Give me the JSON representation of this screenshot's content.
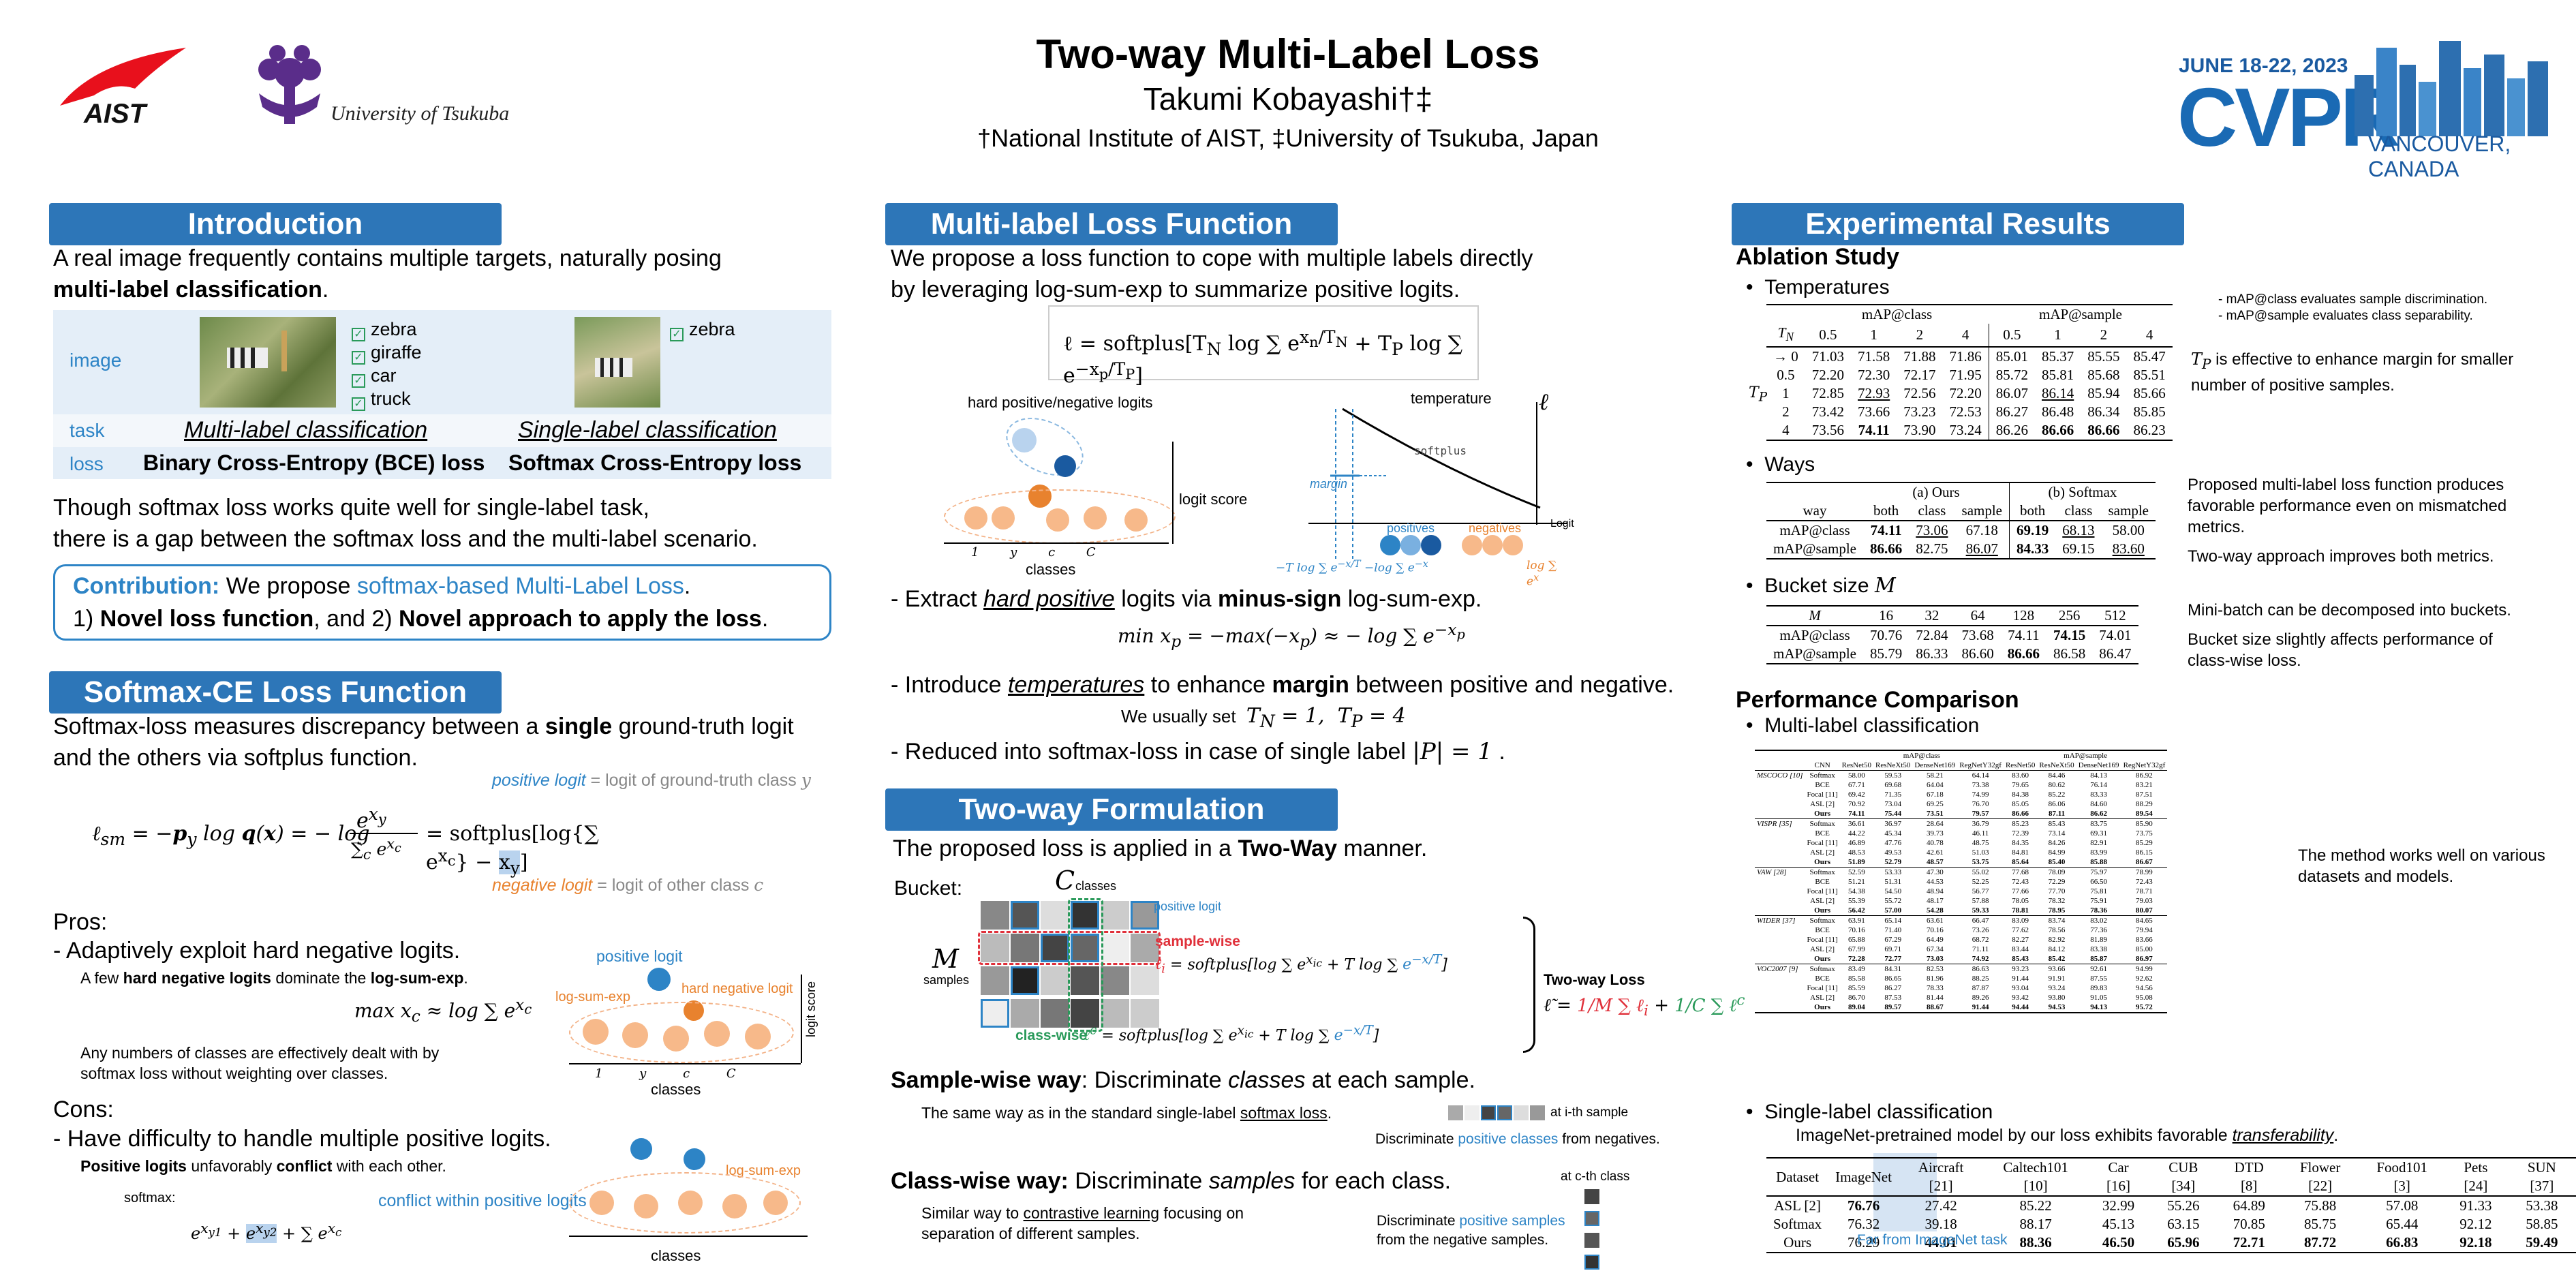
{
  "header": {
    "title": "Two-way Multi-Label Loss",
    "author": "Takumi Kobayashi†‡",
    "affil": "†National Institute of AIST, ‡University of Tsukuba, Japan",
    "aist": "AIST",
    "tsukuba": "University of Tsukuba",
    "cvpr_date": "JUNE 18-22, 2023",
    "cvpr": "CVPR",
    "cvpr_loc": "VANCOUVER, CANADA"
  },
  "intro": {
    "title": "Introduction",
    "p1": "A real image frequently contains multiple targets, naturally posing",
    "p1b": "multi-label classification",
    "row_image": "image",
    "row_task": "task",
    "row_loss": "loss",
    "labels_multi": [
      "zebra",
      "giraffe",
      "car",
      "truck"
    ],
    "labels_single": [
      "zebra"
    ],
    "task_multi": "Multi-label classification",
    "task_single": "Single-label classification",
    "loss_multi": "Binary Cross-Entropy (BCE) loss",
    "loss_single": "Softmax Cross-Entropy loss",
    "p2a": "Though softmax loss works quite well for single-label task,",
    "p2b": "there is a gap between the softmax loss and the multi-label scenario.",
    "contrib_label": "Contribution:",
    "contrib_a": "We propose",
    "contrib_b": "softmax-based Multi-Label Loss",
    "contrib_c": ".",
    "contrib2_a": "1)",
    "contrib2_b": "Novel loss function",
    "contrib2_c": ", and 2)",
    "contrib2_d": "Novel approach to apply the loss",
    "contrib2_e": "."
  },
  "softmax": {
    "title": "Softmax-CE Loss Function",
    "p1a": "Softmax-loss measures discrepancy between a",
    "p1b": "single",
    "p1c": "ground-truth logit",
    "p1d": "and the others via softplus function.",
    "pos_logit": "positive logit",
    "pos_desc": "= logit of ground-truth class",
    "neg_logit": "negative logit",
    "neg_desc": "= logit of other class",
    "pros": "Pros:",
    "pro1": "- Adaptively exploit hard negative logits.",
    "pro_sub_a": "A few",
    "pro_sub_b": "hard negative logits",
    "pro_sub_c": "dominate the",
    "pro_sub_d": "log-sum-exp",
    "pro_sub2": "Any numbers of classes are effectively dealt with by",
    "pro_sub3": "softmax loss without weighting over classes.",
    "fig1_pos": "positive logit",
    "fig1_lse": "log-sum-exp",
    "fig1_hard": "hard negative logit",
    "fig1_score": "logit score",
    "fig1_classes": "classes",
    "cons": "Cons:",
    "con1": "- Have difficulty to handle multiple positive logits.",
    "con_sub_a": "Positive logits",
    "con_sub_b": "unfavorably",
    "con_sub_c": "conflict",
    "con_sub_d": "with each other.",
    "softmax_lbl": "softmax:",
    "conflict": "conflict within positive logits",
    "fig2_lse": "log-sum-exp",
    "fig2_classes": "classes"
  },
  "mll": {
    "title": "Multi-label Loss Function",
    "p1": "We propose a loss function to cope with multiple labels directly",
    "p2": "by leveraging log-sum-exp to summarize positive logits.",
    "fig_hard": "hard positive/negative logits",
    "fig_score": "logit score",
    "fig_classes": "classes",
    "fig_temp": "temperature",
    "fig_softplus": "softplus",
    "fig_margin": "margin",
    "fig_logit": "Logit",
    "fig_positives": "positives",
    "fig_negatives": "negatives",
    "b1a": "- Extract",
    "b1b": "hard positive",
    "b1c": "logits via",
    "b1d": "minus-sign",
    "b1e": "log-sum-exp.",
    "b2a": "- Introduce",
    "b2b": "temperatures",
    "b2c": "to enhance",
    "b2d": "margin",
    "b2e": "between positive and negative.",
    "b2s": "We usually set",
    "b3": "- Reduced into softmax-loss in case of single label"
  },
  "twoway": {
    "title": "Two-way Formulation",
    "p1a": "The proposed loss is applied in a",
    "p1b": "Two-Way",
    "p1c": "manner.",
    "bucket": "Bucket:",
    "classes": "classes",
    "samples": "samples",
    "pos_logit": "positive logit",
    "samplewise": "sample-wise",
    "classwise": "class-wise",
    "twoway_loss": "Two-way Loss",
    "sw_a": "Sample-wise way",
    "sw_b": ": Discriminate",
    "sw_c": "classes",
    "sw_d": "at each sample.",
    "sw_sub_a": "The same way as in the standard single-label",
    "sw_sub_b": "softmax loss",
    "sw_at": "at i-th sample",
    "sw_disc_a": "Discriminate",
    "sw_disc_b": "positive classes",
    "sw_disc_c": "from negatives.",
    "cw_a": "Class-wise way:",
    "cw_b": "Discriminate",
    "cw_c": "samples",
    "cw_d": "for each class.",
    "cw_sub1a": "Similar way to",
    "cw_sub1b": "contrastive learning",
    "cw_sub1c": "focusing on",
    "cw_sub2": "separation of different samples.",
    "cw_at": "at c-th class",
    "cw_disc_a": "Discriminate",
    "cw_disc_b": "positive samples",
    "cw_disc_c": "from the negative samples."
  },
  "exp": {
    "title": "Experimental Results",
    "ablation": "Ablation Study",
    "temps": "Temperatures",
    "ways": "Ways",
    "bucket": "Bucket size",
    "note1": "- mAP@class evaluates sample discrimination.",
    "note2": "- mAP@sample evaluates class separability.",
    "note_temp_b": "is effective to enhance margin for smaller",
    "note_temp_c": "number of positive samples.",
    "note_ways1": "Proposed multi-label loss function produces",
    "note_ways2": "favorable performance even on mismatched",
    "note_ways3": "metrics.",
    "note_ways4": "Two-way approach improves both metrics.",
    "note_b1": "Mini-batch can be decomposed into buckets.",
    "note_b2": "Bucket size slightly affects performance of",
    "note_b3": "class-wise loss.",
    "perf": "Performance Comparison",
    "multi": "Multi-label classification",
    "note_perf1": "The method works well on various",
    "note_perf2": "datasets and models.",
    "single": "Single-label classification",
    "single_sub_a": "ImageNet-pretrained model by our loss exhibits favorable",
    "single_sub_b": "transferability",
    "far": "Far from ImageNet task"
  },
  "temp_table": {
    "h_class": "mAP@class",
    "h_sample": "mAP@sample",
    "cols": [
      "0.5",
      "1",
      "2",
      "4",
      "0.5",
      "1",
      "2",
      "4"
    ],
    "rows": [
      {
        "tn": "→ 0",
        "v": [
          "71.03",
          "71.58",
          "71.88",
          "71.86",
          "85.01",
          "85.37",
          "85.55",
          "85.47"
        ]
      },
      {
        "tn": "0.5",
        "v": [
          "72.20",
          "72.30",
          "72.17",
          "71.95",
          "85.72",
          "85.81",
          "85.68",
          "85.51"
        ]
      },
      {
        "tn": "1",
        "v": [
          "72.85",
          "72.93",
          "72.56",
          "72.20",
          "86.07",
          "86.14",
          "85.94",
          "85.66"
        ]
      },
      {
        "tn": "2",
        "v": [
          "73.42",
          "73.66",
          "73.23",
          "72.53",
          "86.27",
          "86.48",
          "86.34",
          "85.85"
        ]
      },
      {
        "tn": "4",
        "v": [
          "73.56",
          "74.11",
          "73.90",
          "73.24",
          "86.26",
          "86.66",
          "86.66",
          "86.23"
        ]
      }
    ]
  },
  "ways_table": {
    "h_ours": "(a) Ours",
    "h_soft": "(b) Softmax",
    "h_way": "way",
    "cols": [
      "both",
      "class",
      "sample",
      "both",
      "class",
      "sample"
    ],
    "rows": [
      {
        "n": "mAP@class",
        "v": [
          "74.11",
          "73.06",
          "67.18",
          "69.19",
          "68.13",
          "58.00"
        ]
      },
      {
        "n": "mAP@sample",
        "v": [
          "86.66",
          "82.75",
          "86.07",
          "84.33",
          "69.15",
          "83.60"
        ]
      }
    ]
  },
  "bucket_table": {
    "cols": [
      "16",
      "32",
      "64",
      "128",
      "256",
      "512"
    ],
    "rows": [
      {
        "n": "mAP@class",
        "v": [
          "70.76",
          "72.84",
          "73.68",
          "74.11",
          "74.15",
          "74.01"
        ]
      },
      {
        "n": "mAP@sample",
        "v": [
          "85.79",
          "86.33",
          "86.60",
          "86.66",
          "86.58",
          "86.47"
        ]
      }
    ]
  },
  "perf_table": {
    "h_class": "mAP@class",
    "h_sample": "mAP@sample",
    "cnn": "CNN",
    "models": [
      "ResNet50",
      "ResNeXt50",
      "DenseNet169",
      "RegNetY32gf",
      "ResNet50",
      "ResNeXt50",
      "DenseNet169",
      "RegNetY32gf"
    ],
    "groups": [
      {
        "ds": "MSCOCO [10]",
        "rows": [
          [
            "Softmax",
            "58.00",
            "59.53",
            "58.21",
            "64.14",
            "83.60",
            "84.46",
            "84.13",
            "86.92"
          ],
          [
            "BCE",
            "67.71",
            "69.68",
            "64.04",
            "73.38",
            "79.65",
            "80.62",
            "76.14",
            "83.21"
          ],
          [
            "Focal [11]",
            "69.42",
            "71.35",
            "67.18",
            "74.99",
            "84.38",
            "85.22",
            "83.33",
            "87.51"
          ],
          [
            "ASL [2]",
            "70.92",
            "73.04",
            "69.25",
            "76.70",
            "85.05",
            "86.06",
            "84.60",
            "88.29"
          ],
          [
            "Ours",
            "74.11",
            "75.44",
            "73.51",
            "79.57",
            "86.66",
            "87.11",
            "86.62",
            "89.54"
          ]
        ]
      },
      {
        "ds": "VISPR [35]",
        "rows": [
          [
            "Softmax",
            "36.61",
            "36.97",
            "28.64",
            "36.79",
            "85.23",
            "85.43",
            "83.75",
            "85.90"
          ],
          [
            "BCE",
            "44.22",
            "45.34",
            "39.73",
            "46.11",
            "72.39",
            "73.14",
            "69.31",
            "73.75"
          ],
          [
            "Focal [11]",
            "46.89",
            "47.76",
            "40.78",
            "48.75",
            "84.35",
            "84.26",
            "82.91",
            "85.29"
          ],
          [
            "ASL [2]",
            "48.53",
            "49.53",
            "42.61",
            "51.03",
            "84.81",
            "84.99",
            "83.99",
            "86.15"
          ],
          [
            "Ours",
            "51.89",
            "52.79",
            "48.57",
            "53.75",
            "85.64",
            "85.40",
            "85.88",
            "86.67"
          ]
        ]
      },
      {
        "ds": "VAW [28]",
        "rows": [
          [
            "Softmax",
            "52.59",
            "53.33",
            "47.30",
            "55.02",
            "77.68",
            "78.09",
            "75.97",
            "78.99"
          ],
          [
            "BCE",
            "51.21",
            "51.31",
            "44.53",
            "52.25",
            "72.43",
            "72.29",
            "66.50",
            "72.43"
          ],
          [
            "Focal [11]",
            "54.38",
            "54.50",
            "48.94",
            "56.77",
            "77.66",
            "77.70",
            "75.81",
            "78.71"
          ],
          [
            "ASL [2]",
            "55.39",
            "55.72",
            "48.17",
            "57.88",
            "78.05",
            "78.32",
            "75.91",
            "79.03"
          ],
          [
            "Ours",
            "56.42",
            "57.00",
            "54.28",
            "59.33",
            "78.81",
            "78.95",
            "78.36",
            "80.07"
          ]
        ]
      },
      {
        "ds": "WIDER [37]",
        "rows": [
          [
            "Softmax",
            "63.91",
            "65.14",
            "63.61",
            "66.47",
            "83.09",
            "83.74",
            "83.02",
            "84.65"
          ],
          [
            "BCE",
            "70.16",
            "71.40",
            "70.16",
            "73.26",
            "77.62",
            "78.56",
            "77.36",
            "79.94"
          ],
          [
            "Focal [11]",
            "65.88",
            "67.29",
            "64.49",
            "68.72",
            "82.27",
            "82.92",
            "81.89",
            "83.66"
          ],
          [
            "ASL [2]",
            "67.99",
            "69.71",
            "67.34",
            "71.11",
            "83.44",
            "84.12",
            "83.38",
            "85.00"
          ],
          [
            "Ours",
            "72.28",
            "72.77",
            "73.03",
            "74.92",
            "85.43",
            "85.42",
            "85.87",
            "86.97"
          ]
        ]
      },
      {
        "ds": "VOC2007 [9]",
        "rows": [
          [
            "Softmax",
            "83.49",
            "84.31",
            "82.53",
            "86.63",
            "93.23",
            "93.66",
            "92.61",
            "94.99"
          ],
          [
            "BCE",
            "85.58",
            "86.65",
            "81.96",
            "88.25",
            "91.44",
            "91.91",
            "87.55",
            "92.62"
          ],
          [
            "Focal [11]",
            "85.59",
            "86.27",
            "78.33",
            "87.87",
            "93.04",
            "93.24",
            "89.83",
            "94.56"
          ],
          [
            "ASL [2]",
            "86.70",
            "87.53",
            "81.44",
            "89.26",
            "93.42",
            "93.80",
            "91.05",
            "95.08"
          ],
          [
            "Ours",
            "89.04",
            "89.57",
            "88.67",
            "91.44",
            "94.44",
            "94.53",
            "94.13",
            "95.72"
          ]
        ]
      }
    ]
  },
  "single_table": {
    "headers": [
      "Dataset",
      "ImageNet",
      "Aircraft [21]",
      "Caltech101 [10]",
      "Car [16]",
      "CUB [34]",
      "DTD [8]",
      "Flower [22]",
      "Food101 [3]",
      "Pets [24]",
      "SUN [37]"
    ],
    "rows": [
      [
        "ASL [2]",
        "76.76",
        "27.42",
        "85.22",
        "32.99",
        "55.26",
        "64.89",
        "75.88",
        "57.08",
        "91.33",
        "53.38"
      ],
      [
        "Softmax",
        "76.32",
        "39.18",
        "88.17",
        "45.13",
        "63.15",
        "70.85",
        "85.75",
        "65.44",
        "92.12",
        "58.85"
      ],
      [
        "Ours",
        "76.29",
        "44.01",
        "88.36",
        "46.50",
        "65.96",
        "72.71",
        "87.72",
        "66.83",
        "92.18",
        "59.49"
      ]
    ]
  },
  "colors": {
    "header": "#2d76b8",
    "accent": "#2d84c6",
    "orange": "#e8822e",
    "table_bg": "#e4eef8"
  }
}
